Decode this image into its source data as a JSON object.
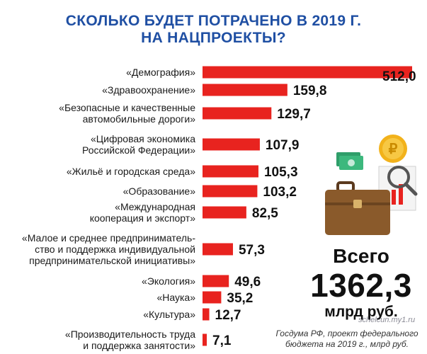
{
  "title": {
    "line1": "СКОЛЬКО БУДЕТ ПОТРАЧЕНО В 2019 Г.",
    "line2": "НА НАЦПРОЕКТЫ?"
  },
  "chart_data": {
    "type": "bar",
    "orientation": "horizontal",
    "categories": [
      [
        "«Демография»"
      ],
      [
        "«Здравоохранение»"
      ],
      [
        "«Безопасные и качественные",
        "автомобильные дороги»"
      ],
      [
        "«Цифровая экономика",
        "Российской Федерации»"
      ],
      [
        "«Жильё и городская среда»"
      ],
      [
        "«Образование»"
      ],
      [
        "«Международная",
        "кооперация и экспорт»"
      ],
      [
        "«Малое и среднее предприниматель-",
        "ство и поддержка индивидуальной",
        "предпринимательской инициативы»"
      ],
      [
        "«Экология»"
      ],
      [
        "«Наука»"
      ],
      [
        "«Культура»"
      ],
      [
        "«Производительность труда",
        "и поддержка занятости»"
      ]
    ],
    "values": [
      512.0,
      159.8,
      129.7,
      107.9,
      105.3,
      103.2,
      82.5,
      57.3,
      49.6,
      35.2,
      12.7,
      7.1
    ],
    "value_labels": [
      "512,0",
      "159,8",
      "129,7",
      "107,9",
      "105,3",
      "103,2",
      "82,5",
      "57,3",
      "49,6",
      "35,2",
      "12,7",
      "7,1"
    ],
    "bar_color": "#e8231f"
  },
  "total": {
    "word": "Всего",
    "value": "1362,3",
    "unit": "млрд руб."
  },
  "source": {
    "line1": "Госдума РФ, проект федерального",
    "line2": "бюджета на 2019 г., млрд руб."
  },
  "watermark": "schelcun.my1.ru",
  "colors": {
    "title": "#1f4fa3",
    "bar": "#e8231f"
  }
}
